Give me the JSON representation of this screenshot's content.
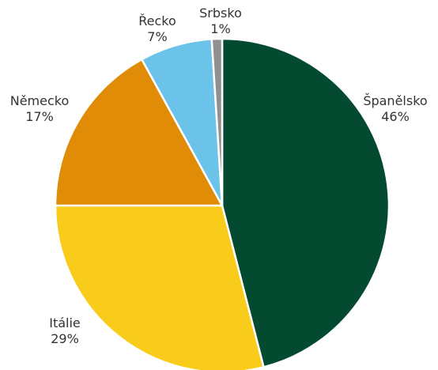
{
  "chart_data": {
    "type": "pie",
    "title": "",
    "legend": "none",
    "slices": [
      {
        "label": "Španělsko",
        "value": 46,
        "value_label": "46%",
        "color": "#034a30"
      },
      {
        "label": "Itálie",
        "value": 29,
        "value_label": "29%",
        "color": "#f9cc1c"
      },
      {
        "label": "Německo",
        "value": 17,
        "value_label": "17%",
        "color": "#e08c07"
      },
      {
        "label": "Řecko",
        "value": 7,
        "value_label": "7%",
        "color": "#6cc3ea"
      },
      {
        "label": "Srbsko",
        "value": 1,
        "value_label": "1%",
        "color": "#909090"
      }
    ]
  }
}
